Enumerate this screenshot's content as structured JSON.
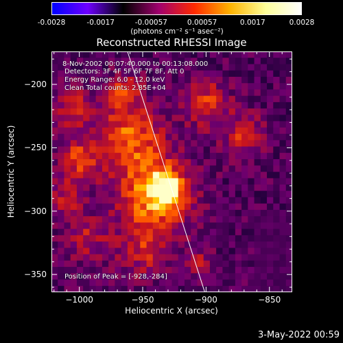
{
  "colorbar": {
    "ticks": [
      "-0.0028",
      "-0.0017",
      "-0.00057",
      "0.00057",
      "0.0017",
      "0.0028"
    ],
    "tick_values": [
      -0.0028,
      -0.0017,
      -0.00057,
      0.00057,
      0.0017,
      0.0028
    ],
    "range": [
      -0.0028,
      0.0028
    ],
    "unit_label": "(photons cm⁻² s⁻¹ asec⁻²)",
    "colors": [
      "#0000ff",
      "#6f00ff",
      "#000000",
      "#a0006e",
      "#ff2a00",
      "#ffb300",
      "#ffff99",
      "#ffffff"
    ]
  },
  "chart_data": {
    "type": "heatmap",
    "title": "Reconstructed RHESSI Image",
    "xlabel": "Heliocentric X (arcsec)",
    "ylabel": "Heliocentric Y (arcsec)",
    "xlim": [
      -1022,
      -832
    ],
    "ylim": [
      -364,
      -174
    ],
    "xticks": [
      -1000,
      -950,
      -900,
      -850
    ],
    "xtick_labels": [
      "−1000",
      "−950",
      "−900",
      "−850"
    ],
    "yticks": [
      -200,
      -250,
      -300,
      -350
    ],
    "ytick_labels": [
      "−200",
      "−250",
      "−300",
      "−350"
    ],
    "peak": [
      -928,
      -284
    ],
    "limb_line": [
      [
        -962,
        -174
      ],
      [
        -901,
        -364
      ]
    ],
    "annotations": {
      "time_range": "8-Nov-2002 00:07:40.000 to 00:13:08.000",
      "detectors": "Detectors: 3F 4F 5F 6F 7F 8F, Att 0",
      "energy": "Energy Range: 6.0 - 12.0 keV",
      "method": "Clean     Total counts: 2.85E+04",
      "peak_text": "Position of Peak = [-928,-284]"
    }
  },
  "footer": {
    "date": "3-May-2022 00:59"
  }
}
